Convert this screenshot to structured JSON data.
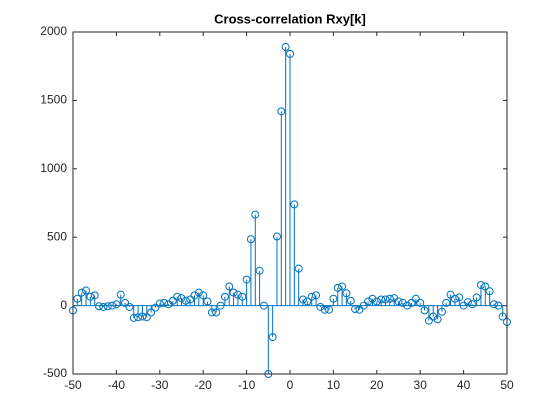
{
  "chart_data": {
    "type": "stem",
    "title": "Cross-correlation Rxy[k]",
    "x": [
      -50,
      -49,
      -48,
      -47,
      -46,
      -45,
      -44,
      -43,
      -42,
      -41,
      -40,
      -39,
      -38,
      -37,
      -36,
      -35,
      -34,
      -33,
      -32,
      -31,
      -30,
      -29,
      -28,
      -27,
      -26,
      -25,
      -24,
      -23,
      -22,
      -21,
      -20,
      -19,
      -18,
      -17,
      -16,
      -15,
      -14,
      -13,
      -12,
      -11,
      -10,
      -9,
      -8,
      -7,
      -6,
      -5,
      -4,
      -3,
      -2,
      -1,
      0,
      1,
      2,
      3,
      4,
      5,
      6,
      7,
      8,
      9,
      10,
      11,
      12,
      13,
      14,
      15,
      16,
      17,
      18,
      19,
      20,
      21,
      22,
      23,
      24,
      25,
      26,
      27,
      28,
      29,
      30,
      31,
      32,
      33,
      34,
      35,
      36,
      37,
      38,
      39,
      40,
      41,
      42,
      43,
      44,
      45,
      46,
      47,
      48,
      49,
      50
    ],
    "values": [
      -35,
      50,
      95,
      110,
      65,
      75,
      -5,
      -10,
      -5,
      0,
      10,
      80,
      20,
      -10,
      -90,
      -85,
      -80,
      -85,
      -50,
      -15,
      15,
      20,
      10,
      35,
      65,
      55,
      35,
      45,
      75,
      95,
      75,
      30,
      -50,
      -50,
      0,
      65,
      140,
      95,
      80,
      65,
      190,
      485,
      665,
      255,
      0,
      -500,
      -230,
      505,
      1420,
      1890,
      1840,
      740,
      270,
      45,
      30,
      65,
      75,
      -10,
      -30,
      -30,
      50,
      130,
      140,
      90,
      35,
      -25,
      -30,
      0,
      30,
      50,
      30,
      45,
      45,
      50,
      55,
      30,
      20,
      0,
      20,
      50,
      20,
      -35,
      -110,
      -80,
      -100,
      -45,
      20,
      80,
      50,
      60,
      0,
      25,
      10,
      60,
      150,
      140,
      105,
      10,
      0,
      -80,
      -120
    ],
    "color": "#0072bd",
    "xlim": [
      -50,
      50
    ],
    "xticks": [
      -50,
      -40,
      -30,
      -20,
      -10,
      0,
      10,
      20,
      30,
      40,
      50
    ],
    "ylim": [
      -500,
      2000
    ],
    "yticks": [
      -500,
      0,
      500,
      1000,
      1500,
      2000
    ]
  }
}
